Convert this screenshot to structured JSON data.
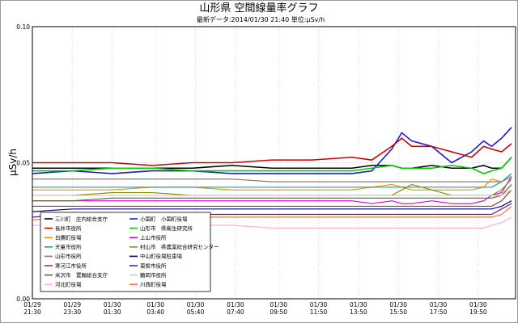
{
  "chart_data": {
    "type": "line",
    "title": "山形県 空間線量率グラフ",
    "subtitle": "最新データ:2014/01/30 21:40 単位:μSv/h",
    "ylabel": "μSv/h",
    "ylim": [
      0,
      0.1
    ],
    "yticks": [
      "0.00",
      "0.05",
      "0.10"
    ],
    "xlim_hours": [
      0,
      24.2
    ],
    "xticks": [
      {
        "date": "01/29",
        "time": "21:30",
        "h": 0
      },
      {
        "date": "01/29",
        "time": "23:30",
        "h": 2
      },
      {
        "date": "01/30",
        "time": "01:30",
        "h": 4
      },
      {
        "date": "01/30",
        "time": "03:40",
        "h": 6.17
      },
      {
        "date": "01/30",
        "time": "05:40",
        "h": 8.17
      },
      {
        "date": "01/30",
        "time": "07:40",
        "h": 10.17
      },
      {
        "date": "01/30",
        "time": "09:50",
        "h": 12.33
      },
      {
        "date": "01/30",
        "time": "11:50",
        "h": 14.33
      },
      {
        "date": "01/30",
        "time": "13:50",
        "h": 16.33
      },
      {
        "date": "01/30",
        "time": "15:50",
        "h": 18.33
      },
      {
        "date": "01/30",
        "time": "17:50",
        "h": 20.33
      },
      {
        "date": "01/30",
        "time": "19:50",
        "h": 22.33
      }
    ],
    "grid": true,
    "legend_position": "bottom-left",
    "x": [
      0,
      2,
      4,
      6,
      8,
      10,
      12,
      14,
      16,
      17,
      18,
      18.5,
      19,
      20,
      21,
      22,
      22.6,
      23,
      23.5,
      24
    ],
    "series": [
      {
        "name": "三川町　庄内総合支庁",
        "color": "#000000",
        "values": [
          0.048,
          0.048,
          0.048,
          0.048,
          0.048,
          0.049,
          0.048,
          0.048,
          0.048,
          0.049,
          0.049,
          0.048,
          0.048,
          0.049,
          0.048,
          0.048,
          0.049,
          0.048,
          0.048,
          0.052
        ]
      },
      {
        "name": "小国町　小国町役場",
        "color": "#1c1cd0",
        "values": [
          0.046,
          0.047,
          0.046,
          0.047,
          0.047,
          0.046,
          0.046,
          0.046,
          0.046,
          0.047,
          0.055,
          0.061,
          0.058,
          0.056,
          0.05,
          0.054,
          0.058,
          0.056,
          0.059,
          0.063
        ]
      },
      {
        "name": "長井市役所",
        "color": "#cc0000",
        "values": [
          0.05,
          0.05,
          0.05,
          0.049,
          0.05,
          0.05,
          0.051,
          0.051,
          0.052,
          0.051,
          0.056,
          0.059,
          0.056,
          0.056,
          0.054,
          0.052,
          0.056,
          0.055,
          0.054,
          0.057
        ]
      },
      {
        "name": "山形市　県衛生研究所",
        "color": "#00cc00",
        "values": [
          0.047,
          0.047,
          0.048,
          0.048,
          0.047,
          0.047,
          0.047,
          0.047,
          0.047,
          0.048,
          0.049,
          0.048,
          0.048,
          0.048,
          0.049,
          0.048,
          0.046,
          0.047,
          0.048,
          0.052
        ]
      },
      {
        "name": "白鷹町役場",
        "color": "#ff8c00",
        "values": [
          0.04,
          0.04,
          0.04,
          0.041,
          0.041,
          0.04,
          0.04,
          0.04,
          0.04,
          0.041,
          0.042,
          0.041,
          0.04,
          0.04,
          0.04,
          0.04,
          0.041,
          0.044,
          0.043,
          0.045
        ]
      },
      {
        "name": "上山市役所",
        "color": "#e000e0",
        "values": [
          0.036,
          0.036,
          0.036,
          0.036,
          0.036,
          0.036,
          0.036,
          0.036,
          0.036,
          0.035,
          0.036,
          0.035,
          0.035,
          0.036,
          0.035,
          0.035,
          0.036,
          0.038,
          0.039,
          0.045
        ]
      },
      {
        "name": "天童市役所",
        "color": "#00a6a6",
        "values": [
          0.041,
          0.041,
          0.041,
          0.041,
          0.041,
          0.041,
          0.041,
          0.041,
          0.041,
          0.041,
          0.041,
          0.041,
          0.041,
          0.041,
          0.041,
          0.041,
          0.041,
          0.041,
          0.043,
          0.046
        ]
      },
      {
        "name": "村山市　県農業総合研究センター",
        "color": "#8b8b00",
        "values": [
          0.038,
          0.038,
          0.039,
          0.039,
          0.038,
          0.038,
          0.038,
          0.038,
          0.038,
          0.038,
          0.038,
          0.04,
          0.042,
          0.04,
          0.038,
          0.038,
          0.038,
          0.038,
          0.04,
          0.044
        ]
      },
      {
        "name": "山形市役所",
        "color": "#808080",
        "values": [
          0.044,
          0.044,
          0.044,
          0.044,
          0.044,
          0.044,
          0.043,
          0.043,
          0.043,
          0.043,
          0.043,
          0.043,
          0.043,
          0.043,
          0.043,
          0.043,
          0.043,
          0.043,
          0.043,
          0.045
        ]
      },
      {
        "name": "中山町役場駐車場",
        "color": "#0000a0",
        "values": [
          0.032,
          0.033,
          0.033,
          0.033,
          0.033,
          0.033,
          0.033,
          0.033,
          0.033,
          0.033,
          0.033,
          0.033,
          0.033,
          0.033,
          0.033,
          0.033,
          0.033,
          0.033,
          0.034,
          0.036
        ]
      },
      {
        "name": "寒河江市役所",
        "color": "#b03030",
        "values": [
          0.034,
          0.034,
          0.034,
          0.034,
          0.034,
          0.034,
          0.034,
          0.034,
          0.034,
          0.034,
          0.034,
          0.034,
          0.034,
          0.034,
          0.034,
          0.034,
          0.034,
          0.034,
          0.036,
          0.04
        ]
      },
      {
        "name": "東根市役所",
        "color": "#5a1e96",
        "values": [
          0.03,
          0.031,
          0.031,
          0.031,
          0.031,
          0.031,
          0.031,
          0.031,
          0.031,
          0.031,
          0.031,
          0.031,
          0.031,
          0.031,
          0.031,
          0.031,
          0.031,
          0.031,
          0.033,
          0.035
        ]
      },
      {
        "name": "米沢市　置賜総合支庁",
        "color": "#556b2f",
        "values": [
          0.036,
          0.036,
          0.037,
          0.037,
          0.037,
          0.037,
          0.037,
          0.037,
          0.037,
          0.037,
          0.037,
          0.037,
          0.037,
          0.037,
          0.037,
          0.037,
          0.037,
          0.037,
          0.038,
          0.042
        ]
      },
      {
        "name": "鶴岡市役所",
        "color": "#c8c8c8",
        "values": [
          0.038,
          0.038,
          0.038,
          0.038,
          0.038,
          0.038,
          0.038,
          0.038,
          0.038,
          0.038,
          0.038,
          0.038,
          0.038,
          0.038,
          0.038,
          0.038,
          0.038,
          0.038,
          0.038,
          0.04
        ]
      },
      {
        "name": "河北町役場",
        "color": "#ffb0d8",
        "values": [
          0.027,
          0.027,
          0.027,
          0.027,
          0.027,
          0.027,
          0.026,
          0.026,
          0.026,
          0.026,
          0.026,
          0.026,
          0.026,
          0.026,
          0.026,
          0.026,
          0.026,
          0.027,
          0.028,
          0.03
        ]
      },
      {
        "name": "川西町役場",
        "color": "#ff7040",
        "values": [
          0.029,
          0.03,
          0.03,
          0.03,
          0.03,
          0.03,
          0.03,
          0.03,
          0.03,
          0.03,
          0.03,
          0.03,
          0.03,
          0.03,
          0.03,
          0.03,
          0.03,
          0.03,
          0.031,
          0.034
        ]
      }
    ]
  }
}
